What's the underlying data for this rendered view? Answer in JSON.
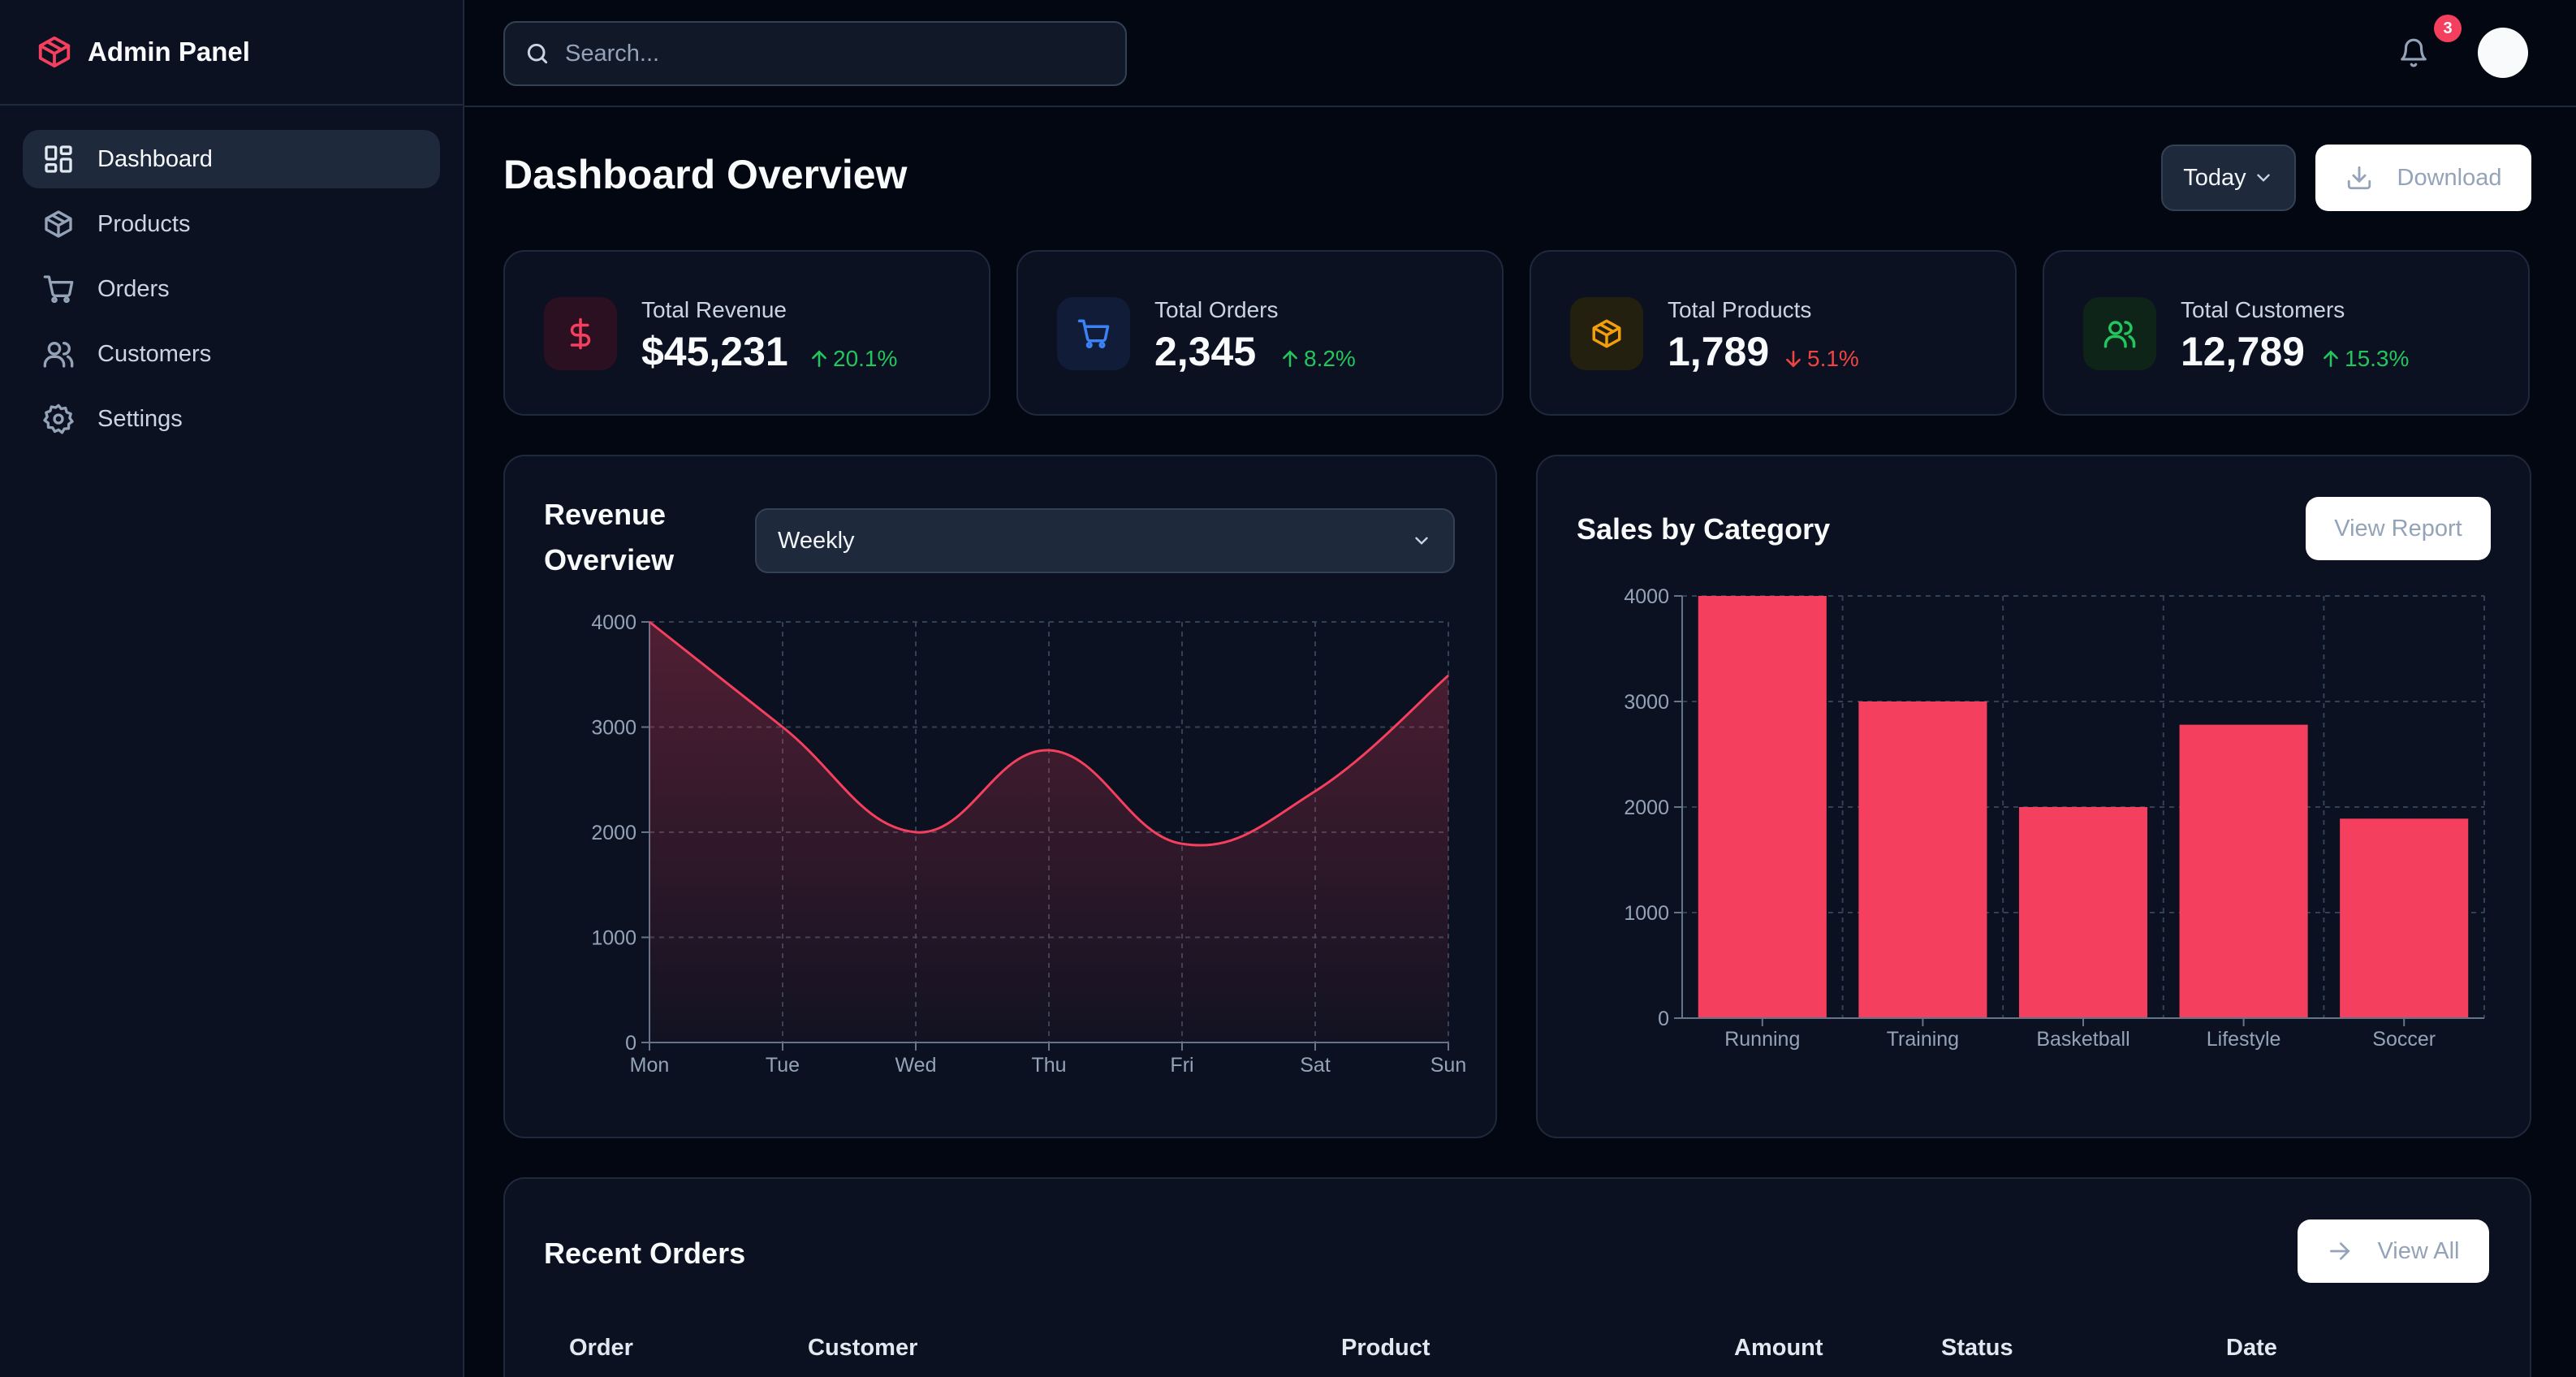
{
  "app": {
    "title": "Admin Panel"
  },
  "sidebar": {
    "items": [
      {
        "label": "Dashboard",
        "icon": "dashboard-icon",
        "active": true
      },
      {
        "label": "Products",
        "icon": "package-icon"
      },
      {
        "label": "Orders",
        "icon": "cart-icon"
      },
      {
        "label": "Customers",
        "icon": "users-icon"
      },
      {
        "label": "Settings",
        "icon": "gear-icon"
      }
    ]
  },
  "header": {
    "search_placeholder": "Search...",
    "notification_count": "3"
  },
  "page": {
    "title": "Dashboard Overview",
    "period_value": "Today",
    "download_label": "Download"
  },
  "stats": [
    {
      "label": "Total Revenue",
      "value": "$45,231",
      "change": "20.1%",
      "direction": "up",
      "icon": "dollar-icon",
      "color": "#f43f5e",
      "bg": "#2a1020"
    },
    {
      "label": "Total Orders",
      "value": "2,345",
      "change": "8.2%",
      "direction": "up",
      "icon": "cart-icon",
      "color": "#3b82f6",
      "bg": "#111c38"
    },
    {
      "label": "Total Products",
      "value": "1,789",
      "change": "5.1%",
      "direction": "down",
      "icon": "package-icon",
      "color": "#f59e0b",
      "bg": "#24200f"
    },
    {
      "label": "Total Customers",
      "value": "12,789",
      "change": "15.3%",
      "direction": "up",
      "icon": "users-icon",
      "color": "#22c55e",
      "bg": "#0f2418"
    }
  ],
  "revenue_card": {
    "title_line1": "Revenue",
    "title_line2": "Overview",
    "period_value": "Weekly"
  },
  "sales_card": {
    "title": "Sales by Category",
    "view_label": "View Report"
  },
  "orders_card": {
    "title": "Recent Orders",
    "view_label": "View All",
    "columns": [
      "Order",
      "Customer",
      "Product",
      "Amount",
      "Status",
      "Date"
    ]
  },
  "chart_data": [
    {
      "type": "area",
      "title": "Revenue Overview",
      "categories": [
        "Mon",
        "Tue",
        "Wed",
        "Thu",
        "Fri",
        "Sat",
        "Sun"
      ],
      "values": [
        4000,
        3000,
        2000,
        2780,
        1890,
        2390,
        3490
      ],
      "ylim": [
        0,
        4000
      ],
      "yticks": [
        0,
        1000,
        2000,
        3000,
        4000
      ],
      "color": "#f43f5e",
      "grid": true
    },
    {
      "type": "bar",
      "title": "Sales by Category",
      "categories": [
        "Running",
        "Training",
        "Basketball",
        "Lifestyle",
        "Soccer"
      ],
      "values": [
        4000,
        3000,
        2000,
        2780,
        1890
      ],
      "ylim": [
        0,
        4000
      ],
      "yticks": [
        0,
        1000,
        2000,
        3000,
        4000
      ],
      "color": "#f43f5e",
      "grid": true
    }
  ]
}
